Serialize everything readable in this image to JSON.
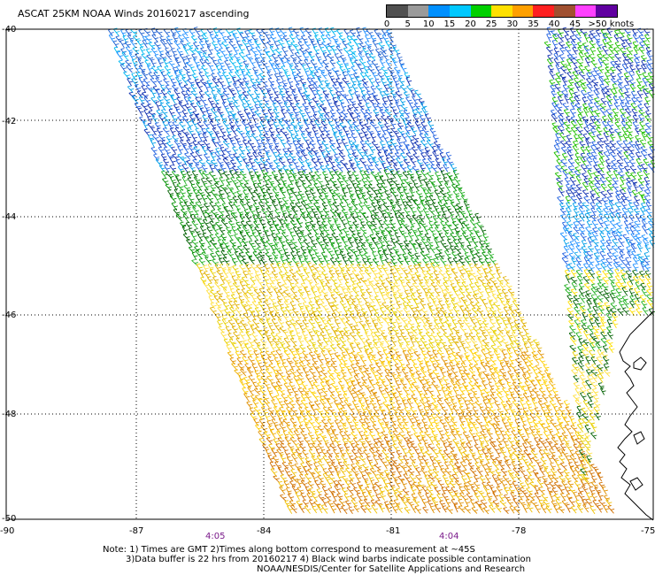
{
  "header": {
    "title": "ASCAT 25KM NOAA Winds 20160217 ascending"
  },
  "legend": {
    "ticks": [
      "0",
      "5",
      "10",
      "15",
      "20",
      "25",
      "30",
      "35",
      "40",
      "45",
      ">50 knots"
    ],
    "colors": [
      "#505050",
      "#9a9a9a",
      "#0090ff",
      "#00c8ff",
      "#00d000",
      "#ffe000",
      "#ffa000",
      "#ff2020",
      "#a05030",
      "#ff40ff",
      "#6000a0"
    ]
  },
  "map": {
    "lat_labels": [
      "-40",
      "-42",
      "-44",
      "-46",
      "-48",
      "-50"
    ],
    "lon_labels": [
      "-90",
      "-87",
      "-84",
      "-81",
      "-78",
      "-75"
    ],
    "times": [
      "4:05",
      "4:04"
    ]
  },
  "notes": {
    "line1": "Note: 1) Times are GMT  2)Times along bottom correspond to measurement at ~45S",
    "line2": "3)Data buffer is 22 hrs from 20160217  4) Black wind barbs indicate possible contamination",
    "line3": "NOAA/NESDIS/Center for Satellite Applications and Research"
  }
}
